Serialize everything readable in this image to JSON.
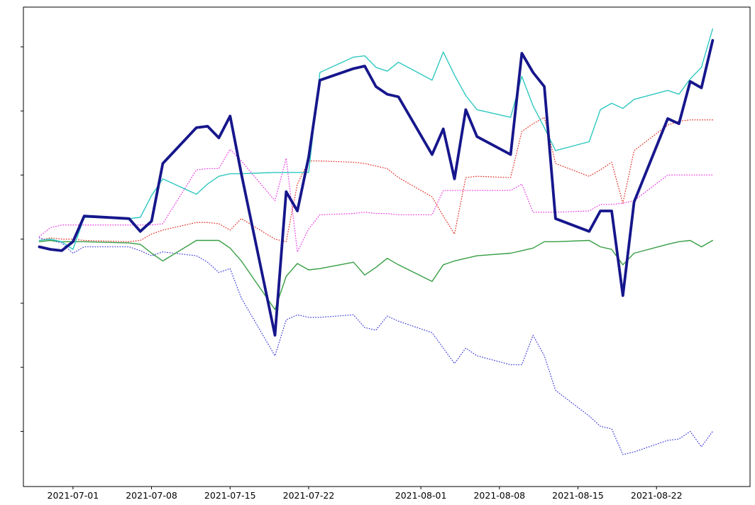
{
  "figure": {
    "background_color": "#ffffff",
    "axis_color": "#000000"
  },
  "chart_data": {
    "type": "line",
    "title": "",
    "xlabel": "",
    "ylabel": "",
    "grid": false,
    "legend": null,
    "x_dates": [
      "2021-06-28",
      "2021-06-29",
      "2021-06-30",
      "2021-07-01",
      "2021-07-02",
      "2021-07-06",
      "2021-07-07",
      "2021-07-08",
      "2021-07-09",
      "2021-07-12",
      "2021-07-13",
      "2021-07-14",
      "2021-07-15",
      "2021-07-16",
      "2021-07-19",
      "2021-07-20",
      "2021-07-21",
      "2021-07-22",
      "2021-07-23",
      "2021-07-26",
      "2021-07-27",
      "2021-07-28",
      "2021-07-29",
      "2021-07-30",
      "2021-08-02",
      "2021-08-03",
      "2021-08-04",
      "2021-08-05",
      "2021-08-06",
      "2021-08-09",
      "2021-08-10",
      "2021-08-11",
      "2021-08-12",
      "2021-08-13",
      "2021-08-16",
      "2021-08-17",
      "2021-08-18",
      "2021-08-19",
      "2021-08-20",
      "2021-08-23",
      "2021-08-24",
      "2021-08-25",
      "2021-08-26",
      "2021-08-27"
    ],
    "series": [
      {
        "name": "blue-dotted-line",
        "color": "#4343dd",
        "style": "dotted",
        "width": 1.3,
        "values": [
          0.1,
          -0.1,
          -0.3,
          -1.1,
          -0.6,
          -0.6,
          -0.9,
          -1.3,
          -1.0,
          -1.3,
          -1.8,
          -2.6,
          -2.3,
          -4.6,
          -9.1,
          -6.3,
          -5.9,
          -6.1,
          -6.1,
          -5.9,
          -6.9,
          -7.1,
          -6.0,
          -6.4,
          -7.3,
          -8.5,
          -9.7,
          -8.5,
          -9.1,
          -9.8,
          -9.8,
          -7.5,
          -9.1,
          -11.8,
          -13.8,
          -14.6,
          -14.8,
          -16.8,
          -16.6,
          -15.7,
          -15.6,
          -15.0,
          -16.2,
          -15.0
        ]
      },
      {
        "name": "magenta-dotted-line",
        "color": "#ea3ce2",
        "style": "dotted",
        "width": 1.3,
        "values": [
          0.2,
          0.9,
          1.1,
          1.1,
          1.1,
          1.1,
          1.1,
          1.1,
          1.2,
          5.4,
          5.5,
          5.5,
          7.0,
          6.1,
          3.0,
          6.3,
          -1.0,
          0.8,
          1.9,
          2.0,
          2.1,
          2.0,
          2.0,
          1.9,
          1.9,
          3.8,
          3.8,
          3.8,
          3.8,
          3.8,
          4.3,
          2.1,
          2.1,
          2.1,
          2.2,
          2.7,
          2.7,
          2.8,
          3.0,
          5.0,
          5.0,
          5.0,
          5.0,
          5.0
        ]
      },
      {
        "name": "red-dotted-line",
        "color": "#e23329",
        "style": "dotted",
        "width": 1.3,
        "values": [
          -0.1,
          0.1,
          0.0,
          0.0,
          -0.1,
          -0.2,
          -0.1,
          0.4,
          0.7,
          1.3,
          1.3,
          1.2,
          0.7,
          1.6,
          0.0,
          -0.2,
          4.3,
          6.1,
          6.1,
          6.0,
          5.9,
          5.7,
          5.5,
          4.8,
          3.3,
          1.8,
          0.4,
          4.8,
          4.9,
          4.8,
          8.4,
          9.0,
          9.5,
          5.9,
          4.9,
          5.4,
          6.0,
          2.8,
          6.9,
          8.9,
          9.2,
          9.3,
          9.3,
          9.3
        ]
      },
      {
        "name": "green-solid-line",
        "color": "#379e44",
        "style": "solid",
        "width": 1.4,
        "values": [
          -0.2,
          -0.1,
          -0.2,
          -0.2,
          -0.2,
          -0.3,
          -0.4,
          -1.1,
          -1.7,
          -0.1,
          -0.1,
          -0.1,
          -0.7,
          -1.7,
          -5.5,
          -2.9,
          -1.9,
          -2.4,
          -2.3,
          -1.8,
          -2.8,
          -2.2,
          -1.5,
          -2.0,
          -3.3,
          -2.0,
          -1.7,
          -1.5,
          -1.3,
          -1.1,
          -0.9,
          -0.7,
          -0.2,
          -0.2,
          -0.1,
          -0.6,
          -0.8,
          -2.0,
          -1.1,
          -0.4,
          -0.2,
          -0.1,
          -0.6,
          -0.1
        ]
      },
      {
        "name": "cyan-solid-line",
        "color": "#2fc8c0",
        "style": "solid",
        "width": 1.4,
        "values": [
          -0.1,
          0.0,
          -0.2,
          -0.8,
          1.7,
          1.6,
          1.7,
          3.4,
          4.7,
          3.5,
          4.3,
          4.9,
          5.1,
          5.1,
          5.2,
          5.2,
          5.2,
          5.2,
          13.0,
          14.2,
          14.3,
          13.4,
          13.1,
          13.8,
          12.4,
          14.6,
          12.8,
          11.2,
          10.1,
          9.5,
          12.7,
          10.4,
          8.7,
          6.9,
          7.6,
          10.1,
          10.6,
          10.2,
          10.9,
          11.6,
          11.3,
          12.5,
          13.4,
          16.4
        ]
      },
      {
        "name": "bold-navy-solid-line",
        "color": "#16168c",
        "style": "solid",
        "width": 3.8,
        "values": [
          -0.6,
          -0.8,
          -0.9,
          -0.2,
          1.8,
          1.6,
          0.6,
          1.4,
          5.9,
          8.7,
          8.8,
          7.9,
          9.6,
          5.1,
          -7.5,
          3.7,
          2.2,
          6.4,
          12.4,
          13.3,
          13.5,
          11.9,
          11.3,
          11.1,
          6.6,
          8.6,
          4.7,
          10.1,
          8.0,
          6.6,
          14.5,
          13.0,
          11.9,
          1.6,
          0.6,
          2.2,
          2.2,
          -4.4,
          2.9,
          9.4,
          9.0,
          12.3,
          11.8,
          15.5
        ]
      }
    ],
    "x_axis": {
      "tick_labels": [
        "2021-07-01",
        "2021-07-08",
        "2021-07-15",
        "2021-07-22",
        "2021-08-01",
        "2021-08-08",
        "2021-08-15",
        "2021-08-22"
      ],
      "labels_visible": true
    },
    "y_axis": {
      "tick_values": [
        15,
        10,
        5,
        0,
        -5,
        -10,
        -15
      ],
      "labels_visible": false,
      "note": "tick labels clipped off left edge of image"
    },
    "xlim": [
      "2021-06-26T14:00:00",
      "2021-08-30T08:00:00"
    ],
    "ylim": [
      -19.3,
      18.1
    ]
  }
}
